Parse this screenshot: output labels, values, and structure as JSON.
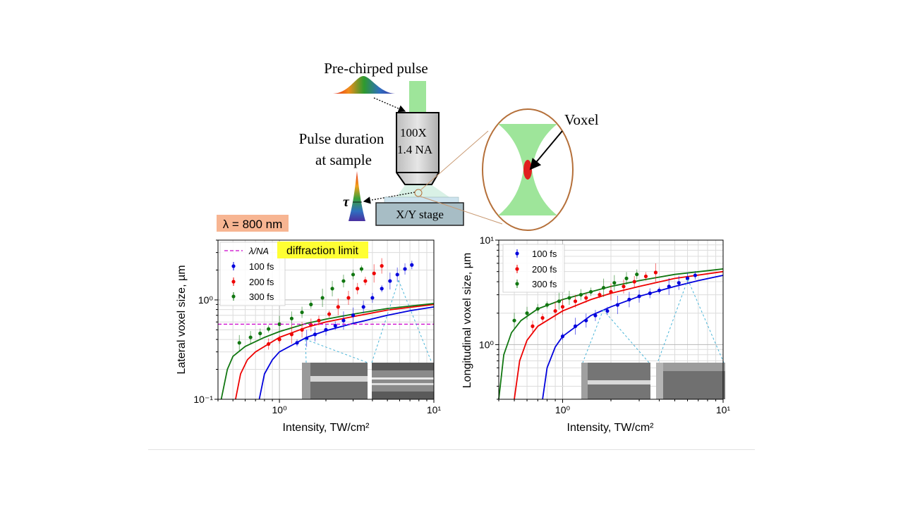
{
  "setup": {
    "pulse_label": "Pre-chirped pulse",
    "objective_mag": "100X",
    "objective_na": "1.4 NA",
    "duration_label_1": "Pulse duration",
    "duration_label_2": "at sample",
    "tau_symbol": "τ",
    "stage_label": "X/Y stage",
    "voxel_label": "Voxel",
    "wavelength_label": "λ = 800 nm"
  },
  "colors": {
    "s100": "#0000dd",
    "s200": "#ee0000",
    "s300": "#117711",
    "beam": "#9ee59a",
    "limit": "#cc00cc",
    "highlight": "#ffff33",
    "wavelength_bg": "#f7b592"
  },
  "chart_data": [
    {
      "type": "scatter",
      "xlabel": "Intensity, TW/cm²",
      "ylabel": "Lateral voxel size, µm",
      "xscale": "log",
      "yscale": "log",
      "xlim": [
        0.4,
        10
      ],
      "ylim": [
        0.1,
        4
      ],
      "xticks": [
        "10⁰",
        "10¹"
      ],
      "yticks": [
        "10⁻¹",
        "10⁰"
      ],
      "grid": true,
      "legend": "top-left",
      "reference_line": {
        "label": "λ/NA",
        "value": 0.57
      },
      "annotation": "diffraction limit",
      "series": [
        {
          "name": "100 fs",
          "color": "#0000dd",
          "points": [
            [
              1.3,
              0.37
            ],
            [
              1.5,
              0.41
            ],
            [
              1.7,
              0.45
            ],
            [
              2.0,
              0.5
            ],
            [
              2.3,
              0.55
            ],
            [
              2.6,
              0.62
            ],
            [
              3.0,
              0.7
            ],
            [
              3.5,
              0.85
            ],
            [
              4.0,
              1.05
            ],
            [
              4.6,
              1.3
            ],
            [
              5.2,
              1.55
            ],
            [
              5.8,
              1.8
            ],
            [
              6.5,
              2.05
            ],
            [
              7.2,
              2.25
            ]
          ],
          "fit": [
            [
              0.74,
              0.1
            ],
            [
              0.8,
              0.18
            ],
            [
              0.9,
              0.25
            ],
            [
              1.0,
              0.3
            ],
            [
              1.5,
              0.42
            ],
            [
              2,
              0.49
            ],
            [
              3,
              0.58
            ],
            [
              5,
              0.7
            ],
            [
              7,
              0.78
            ],
            [
              10,
              0.85
            ]
          ]
        },
        {
          "name": "200 fs",
          "color": "#ee0000",
          "points": [
            [
              0.85,
              0.36
            ],
            [
              1.0,
              0.4
            ],
            [
              1.2,
              0.45
            ],
            [
              1.4,
              0.5
            ],
            [
              1.6,
              0.56
            ],
            [
              1.8,
              0.62
            ],
            [
              2.1,
              0.72
            ],
            [
              2.4,
              0.85
            ],
            [
              2.8,
              1.05
            ],
            [
              3.2,
              1.3
            ],
            [
              3.6,
              1.55
            ],
            [
              4.1,
              1.85
            ],
            [
              4.6,
              2.2
            ]
          ],
          "fit": [
            [
              0.52,
              0.1
            ],
            [
              0.56,
              0.18
            ],
            [
              0.62,
              0.25
            ],
            [
              0.7,
              0.3
            ],
            [
              1,
              0.42
            ],
            [
              1.5,
              0.53
            ],
            [
              2,
              0.6
            ],
            [
              3,
              0.68
            ],
            [
              5,
              0.79
            ],
            [
              10,
              0.9
            ]
          ]
        },
        {
          "name": "300 fs",
          "color": "#117711",
          "points": [
            [
              0.55,
              0.37
            ],
            [
              0.65,
              0.42
            ],
            [
              0.75,
              0.46
            ],
            [
              0.85,
              0.51
            ],
            [
              1.0,
              0.57
            ],
            [
              1.2,
              0.65
            ],
            [
              1.4,
              0.75
            ],
            [
              1.6,
              0.9
            ],
            [
              1.9,
              1.05
            ],
            [
              2.2,
              1.3
            ],
            [
              2.6,
              1.55
            ],
            [
              3.0,
              1.8
            ],
            [
              3.4,
              2.05
            ]
          ],
          "fit": [
            [
              0.42,
              0.1
            ],
            [
              0.46,
              0.2
            ],
            [
              0.5,
              0.27
            ],
            [
              0.6,
              0.34
            ],
            [
              0.8,
              0.42
            ],
            [
              1,
              0.48
            ],
            [
              1.5,
              0.58
            ],
            [
              2,
              0.64
            ],
            [
              3,
              0.72
            ],
            [
              5,
              0.82
            ],
            [
              10,
              0.92
            ]
          ]
        }
      ]
    },
    {
      "type": "scatter",
      "xlabel": "Intensity, TW/cm²",
      "ylabel": "Longitudinal voxel size, µm",
      "xscale": "log",
      "yscale": "log",
      "xlim": [
        0.4,
        10
      ],
      "ylim": [
        0.3,
        10
      ],
      "xticks": [
        "10⁰",
        "10¹"
      ],
      "yticks": [
        "10⁰",
        "10¹"
      ],
      "grid": true,
      "legend": "top-left",
      "series": [
        {
          "name": "100 fs",
          "color": "#0000dd",
          "points": [
            [
              1.0,
              1.2
            ],
            [
              1.2,
              1.5
            ],
            [
              1.4,
              1.7
            ],
            [
              1.6,
              1.9
            ],
            [
              1.9,
              2.1
            ],
            [
              2.2,
              2.4
            ],
            [
              2.6,
              2.7
            ],
            [
              3.0,
              2.9
            ],
            [
              3.5,
              3.1
            ],
            [
              4.0,
              3.3
            ],
            [
              4.6,
              3.6
            ],
            [
              5.3,
              3.9
            ],
            [
              6.0,
              4.3
            ],
            [
              6.7,
              4.6
            ]
          ],
          "fit": [
            [
              0.75,
              0.3
            ],
            [
              0.8,
              0.6
            ],
            [
              0.9,
              0.95
            ],
            [
              1,
              1.2
            ],
            [
              1.5,
              1.9
            ],
            [
              2,
              2.3
            ],
            [
              3,
              2.9
            ],
            [
              5,
              3.6
            ],
            [
              7,
              4.1
            ],
            [
              10,
              4.6
            ]
          ]
        },
        {
          "name": "200 fs",
          "color": "#ee0000",
          "points": [
            [
              0.65,
              1.5
            ],
            [
              0.75,
              1.8
            ],
            [
              0.9,
              2.1
            ],
            [
              1.0,
              2.3
            ],
            [
              1.2,
              2.6
            ],
            [
              1.4,
              2.8
            ],
            [
              1.7,
              3.0
            ],
            [
              2.0,
              3.2
            ],
            [
              2.4,
              3.6
            ],
            [
              2.8,
              4.0
            ],
            [
              3.3,
              4.5
            ],
            [
              3.8,
              4.9
            ]
          ],
          "fit": [
            [
              0.5,
              0.3
            ],
            [
              0.54,
              0.7
            ],
            [
              0.6,
              1.1
            ],
            [
              0.7,
              1.5
            ],
            [
              1,
              2.1
            ],
            [
              1.5,
              2.7
            ],
            [
              2,
              3.1
            ],
            [
              3,
              3.6
            ],
            [
              5,
              4.3
            ],
            [
              10,
              5.0
            ]
          ]
        },
        {
          "name": "300 fs",
          "color": "#117711",
          "points": [
            [
              0.5,
              1.7
            ],
            [
              0.6,
              2.0
            ],
            [
              0.7,
              2.2
            ],
            [
              0.8,
              2.4
            ],
            [
              0.95,
              2.6
            ],
            [
              1.1,
              2.8
            ],
            [
              1.3,
              3.0
            ],
            [
              1.5,
              3.2
            ],
            [
              1.8,
              3.5
            ],
            [
              2.1,
              3.9
            ],
            [
              2.5,
              4.3
            ],
            [
              2.9,
              4.7
            ]
          ],
          "fit": [
            [
              0.4,
              0.3
            ],
            [
              0.43,
              0.8
            ],
            [
              0.48,
              1.3
            ],
            [
              0.55,
              1.7
            ],
            [
              0.7,
              2.2
            ],
            [
              1,
              2.7
            ],
            [
              1.5,
              3.2
            ],
            [
              2,
              3.6
            ],
            [
              3,
              4.1
            ],
            [
              5,
              4.7
            ],
            [
              10,
              5.3
            ]
          ]
        }
      ]
    }
  ]
}
